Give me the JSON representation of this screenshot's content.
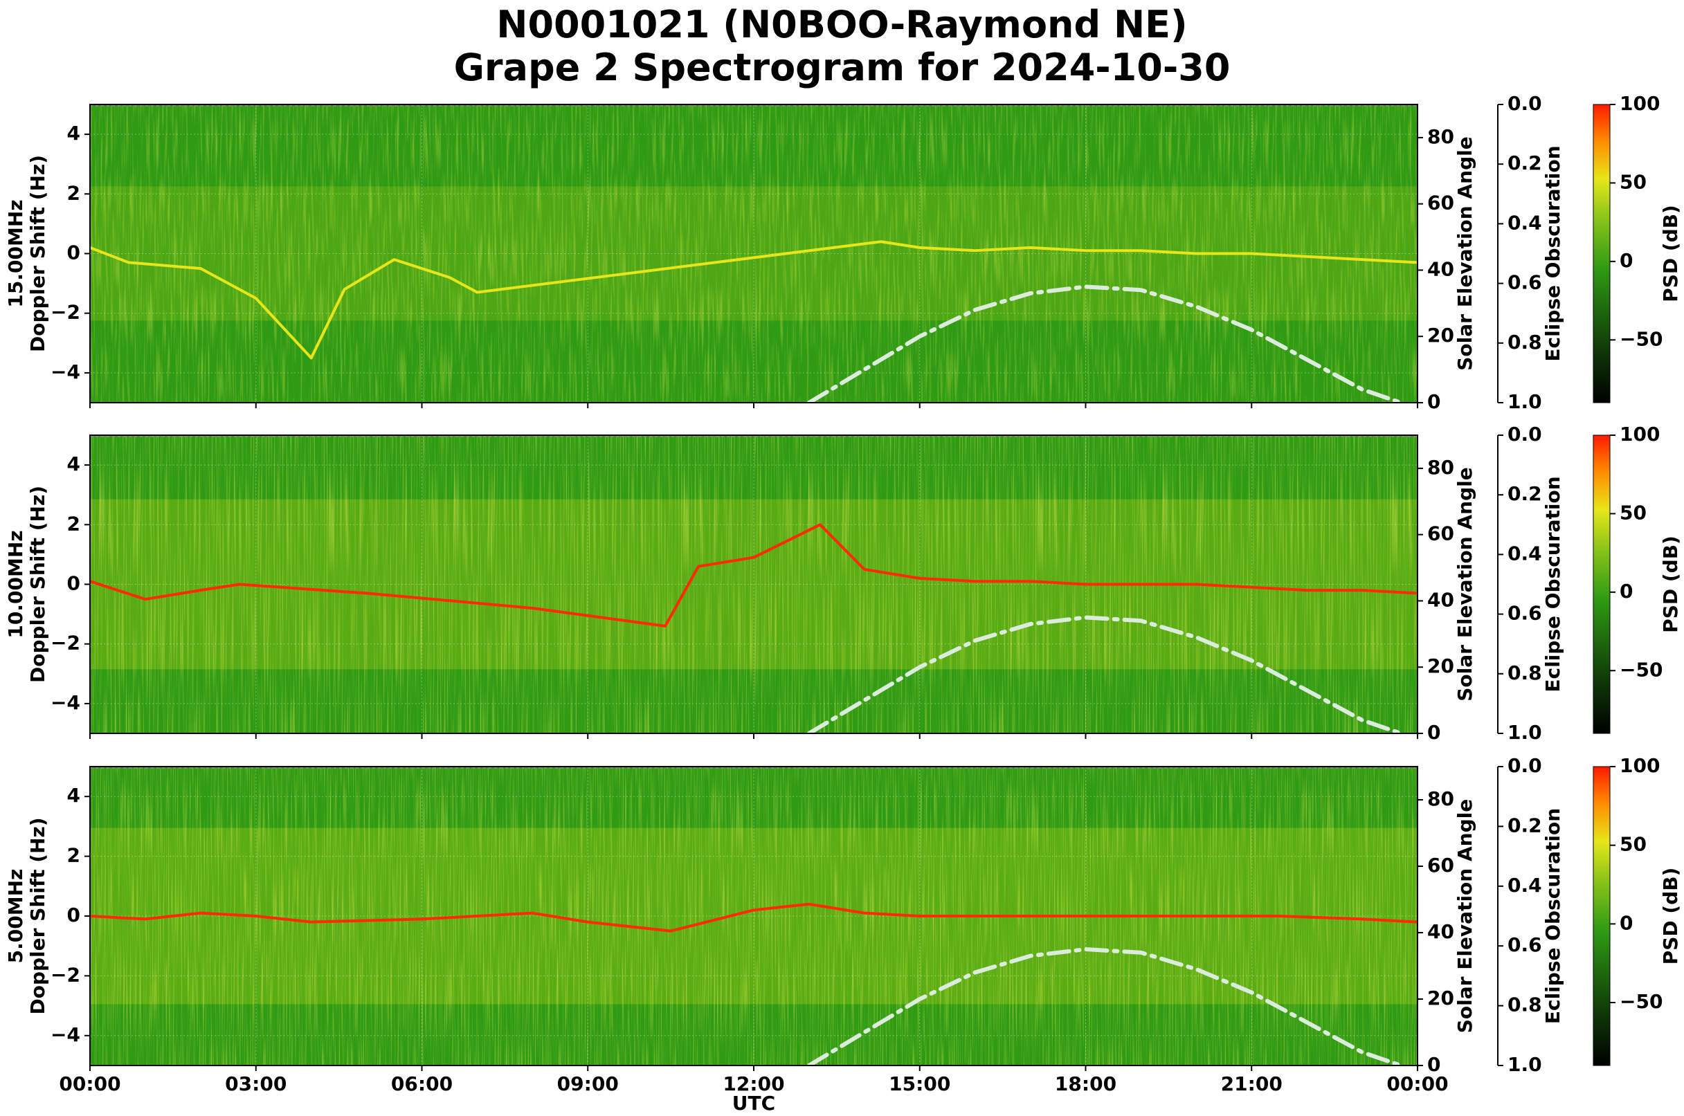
{
  "figure": {
    "title_line1": "N0001021 (N0BOO-Raymond NE)",
    "title_line2": "Grape 2 Spectrogram for 2024-10-30",
    "xlabel": "UTC"
  },
  "colors": {
    "spectrogram_base": "#2f9a14",
    "mid": "#9ac818",
    "high": "#e6e61a",
    "peak": "#ff2a00",
    "sun_curve": "#dcecdc"
  },
  "chart_data": [
    {
      "type": "heatmap",
      "panel": "15.00MHz",
      "ylabel": "15.00MHz\nDoppler Shift (Hz)",
      "ylim": [
        -5,
        5
      ],
      "yticks": [
        "4",
        "2",
        "0",
        "−2",
        "−4"
      ],
      "ytick_values": [
        4,
        2,
        0,
        -2,
        -4
      ],
      "xlim_hours": [
        0,
        24
      ],
      "xticks": [
        "00:00",
        "03:00",
        "06:00",
        "09:00",
        "12:00",
        "15:00",
        "18:00",
        "21:00",
        "00:00"
      ],
      "right_axis1": {
        "label": "Solar Elevation Angle",
        "ylim": [
          0,
          90
        ],
        "ticks": [
          "0",
          "20",
          "40",
          "60",
          "80"
        ]
      },
      "right_axis2": {
        "label": "Eclipse Obscuration",
        "ylim": [
          1.0,
          0.0
        ],
        "ticks": [
          "0.0",
          "0.2",
          "0.4",
          "0.6",
          "0.8",
          "1.0"
        ]
      },
      "colorbar": {
        "label": "PSD (dB)",
        "range": [
          -90,
          100
        ],
        "ticks": [
          "100",
          "50",
          "0",
          "−50"
        ]
      },
      "intensity": 0.25,
      "solar_elevation": {
        "hours": [
          13,
          14,
          15,
          16,
          17,
          18,
          19,
          20,
          21,
          22,
          23,
          23.7
        ],
        "deg": [
          0,
          10,
          20,
          28,
          33,
          35,
          34,
          29,
          22,
          13,
          4,
          0
        ]
      },
      "trace": {
        "hours": [
          0,
          0.7,
          2,
          3,
          4,
          4.6,
          5.5,
          6.5,
          7,
          14.3,
          15,
          16,
          17,
          18,
          19,
          20,
          21,
          22,
          23,
          24
        ],
        "doppler": [
          0.2,
          -0.3,
          -0.5,
          -1.5,
          -3.5,
          -1.2,
          -0.2,
          -0.8,
          -1.3,
          0.4,
          0.2,
          0.1,
          0.2,
          0.1,
          0.1,
          0.0,
          0.0,
          -0.1,
          -0.2,
          -0.3
        ]
      }
    },
    {
      "type": "heatmap",
      "panel": "10.00MHz",
      "ylabel": "10.00MHz\nDoppler Shift (Hz)",
      "ylim": [
        -5,
        5
      ],
      "yticks": [
        "4",
        "2",
        "0",
        "−2",
        "−4"
      ],
      "ytick_values": [
        4,
        2,
        0,
        -2,
        -4
      ],
      "xlim_hours": [
        0,
        24
      ],
      "xticks": [
        "00:00",
        "03:00",
        "06:00",
        "09:00",
        "12:00",
        "15:00",
        "18:00",
        "21:00",
        "00:00"
      ],
      "right_axis1": {
        "label": "Solar Elevation Angle",
        "ylim": [
          0,
          90
        ],
        "ticks": [
          "0",
          "20",
          "40",
          "60",
          "80"
        ]
      },
      "right_axis2": {
        "label": "Eclipse Obscuration",
        "ylim": [
          1.0,
          0.0
        ],
        "ticks": [
          "0.0",
          "0.2",
          "0.4",
          "0.6",
          "0.8",
          "1.0"
        ]
      },
      "colorbar": {
        "label": "PSD (dB)",
        "range": [
          -90,
          100
        ],
        "ticks": [
          "100",
          "50",
          "0",
          "−50"
        ]
      },
      "intensity": 0.55,
      "solar_elevation": {
        "hours": [
          13,
          14,
          15,
          16,
          17,
          18,
          19,
          20,
          21,
          22,
          23,
          23.7
        ],
        "deg": [
          0,
          10,
          20,
          28,
          33,
          35,
          34,
          29,
          22,
          13,
          4,
          0
        ]
      },
      "trace": {
        "hours": [
          0,
          1,
          2,
          2.7,
          5,
          8,
          10.4,
          11,
          12,
          13.2,
          14,
          15,
          16,
          17,
          18,
          19,
          20,
          21,
          22,
          23,
          24
        ],
        "doppler": [
          0.1,
          -0.5,
          -0.2,
          0.0,
          -0.3,
          -0.8,
          -1.4,
          0.6,
          0.9,
          2.0,
          0.5,
          0.2,
          0.1,
          0.1,
          0.0,
          0.0,
          0.0,
          -0.1,
          -0.2,
          -0.2,
          -0.3
        ]
      }
    },
    {
      "type": "heatmap",
      "panel": "5.00MHz",
      "ylabel": "5.00MHz\nDoppler Shift (Hz)",
      "ylim": [
        -5,
        5
      ],
      "yticks": [
        "4",
        "2",
        "0",
        "−2",
        "−4"
      ],
      "ytick_values": [
        4,
        2,
        0,
        -2,
        -4
      ],
      "xlim_hours": [
        0,
        24
      ],
      "xticks": [
        "00:00",
        "03:00",
        "06:00",
        "09:00",
        "12:00",
        "15:00",
        "18:00",
        "21:00",
        "00:00"
      ],
      "right_axis1": {
        "label": "Solar Elevation Angle",
        "ylim": [
          0,
          90
        ],
        "ticks": [
          "0",
          "20",
          "40",
          "60",
          "80"
        ]
      },
      "right_axis2": {
        "label": "Eclipse Obscuration",
        "ylim": [
          1.0,
          0.0
        ],
        "ticks": [
          "0.0",
          "0.2",
          "0.4",
          "0.6",
          "0.8",
          "1.0"
        ]
      },
      "colorbar": {
        "label": "PSD (dB)",
        "range": [
          -90,
          100
        ],
        "ticks": [
          "100",
          "50",
          "0",
          "−50"
        ]
      },
      "intensity": 0.6,
      "solar_elevation": {
        "hours": [
          13,
          14,
          15,
          16,
          17,
          18,
          19,
          20,
          21,
          22,
          23,
          23.7
        ],
        "deg": [
          0,
          10,
          20,
          28,
          33,
          35,
          34,
          29,
          22,
          13,
          4,
          0
        ]
      },
      "trace": {
        "hours": [
          0,
          1,
          2,
          3,
          4,
          6,
          8,
          9,
          10.5,
          12,
          13,
          14,
          15,
          16,
          18,
          20.8,
          21.5,
          23,
          24
        ],
        "doppler": [
          0.0,
          -0.1,
          0.1,
          0.0,
          -0.2,
          -0.1,
          0.1,
          -0.2,
          -0.5,
          0.2,
          0.4,
          0.1,
          0.0,
          0.0,
          0.0,
          0.0,
          0.0,
          -0.1,
          -0.2
        ]
      }
    }
  ]
}
